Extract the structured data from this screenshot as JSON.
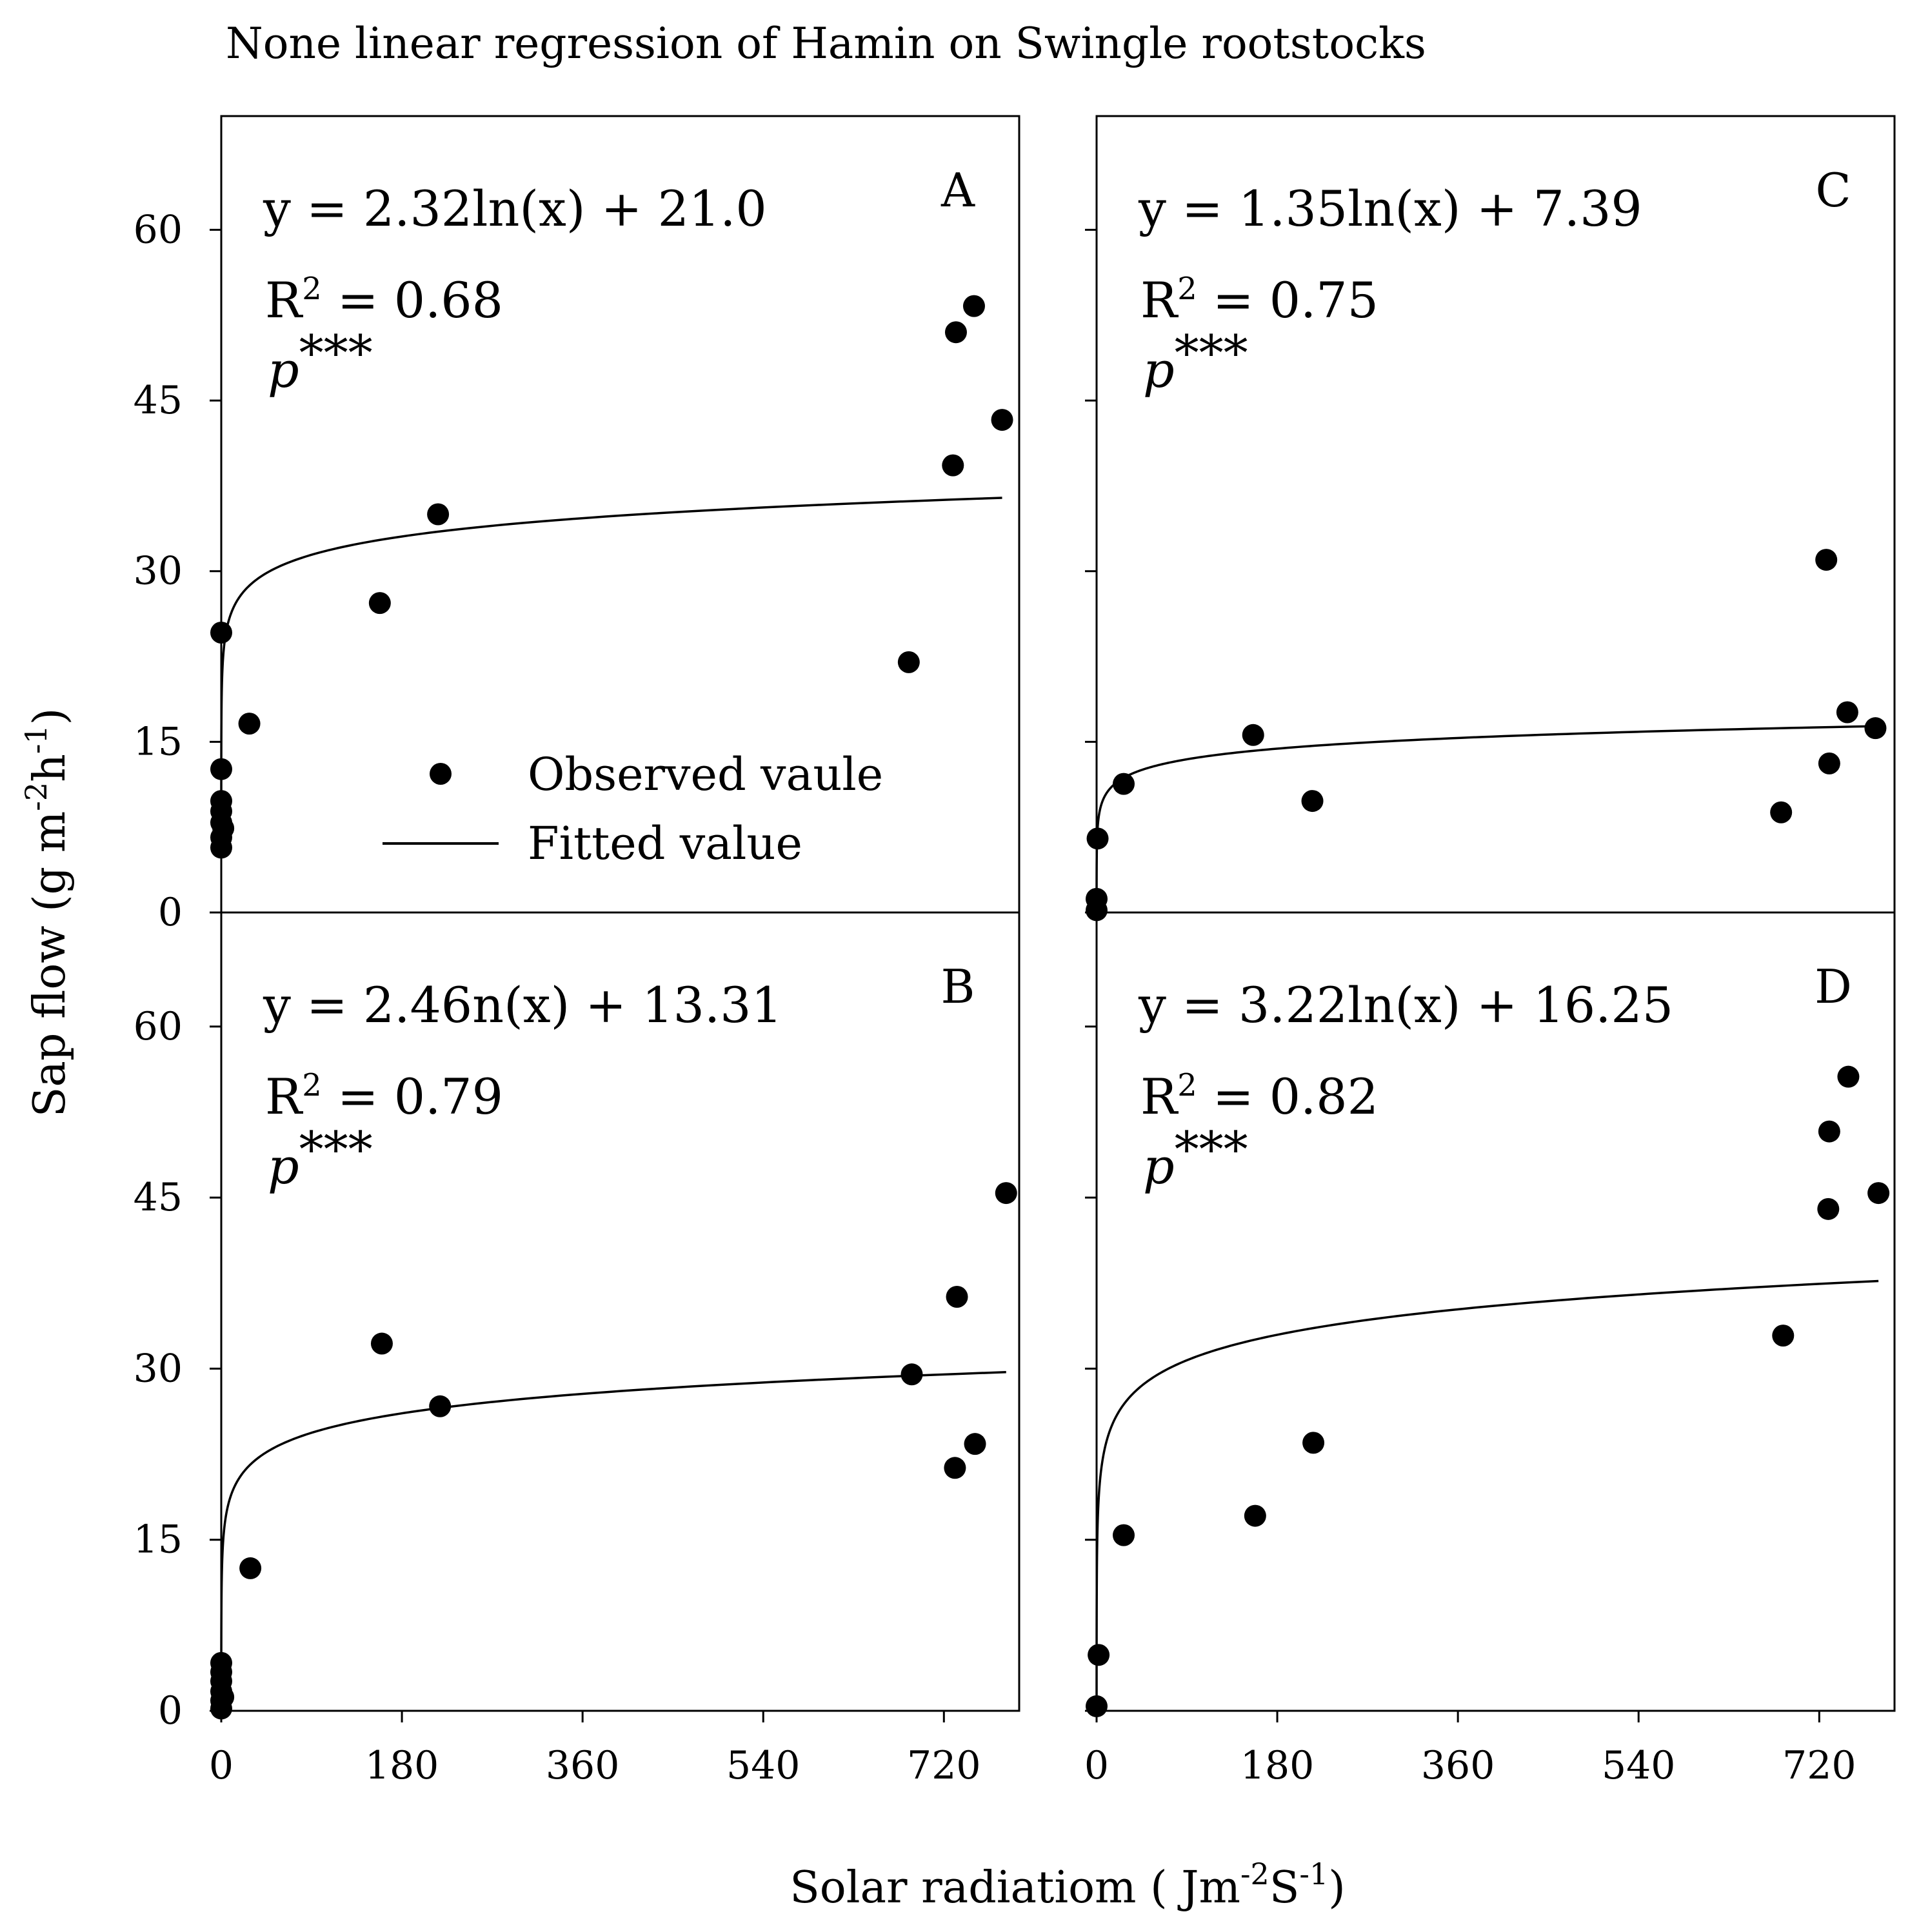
{
  "chart_data": {
    "type": "scatter",
    "title": "None linear regression of Hamin on Swingle rootstocks",
    "xlabel": {
      "base": "Solar radiatiom ( Jm",
      "sup1": "-2",
      "mid": "S",
      "sup2": "-1",
      "end": ")"
    },
    "ylabel": {
      "base": "Sap flow (g m",
      "sup1": "-2",
      "mid": "h",
      "sup2": "-1",
      "end": ")"
    },
    "x_ticks": [
      0,
      180,
      360,
      540,
      720
    ],
    "y_ticks": [
      0,
      15,
      30,
      45,
      60
    ],
    "xlim": [
      0,
      795
    ],
    "ylim": [
      0,
      70
    ],
    "legend": {
      "position": "lower-center of panel A",
      "observed_label": "Observed vaule",
      "fitted_label": "Fitted value"
    },
    "panels": [
      {
        "id": "A",
        "letter": "A",
        "equation": "y = 2.32ln(x) + 21.0",
        "r2_label": "R",
        "r2_sup": "2",
        "r2_value": " = 0.68",
        "p_label": "p",
        "p_stars": "***",
        "fit": {
          "a": 2.32,
          "b": 21.0
        },
        "points": [
          [
            0,
            24.6
          ],
          [
            0,
            12.6
          ],
          [
            0,
            9.8
          ],
          [
            0,
            8.9
          ],
          [
            0,
            7.9
          ],
          [
            0,
            6.6
          ],
          [
            0,
            5.7
          ],
          [
            2,
            7.4
          ],
          [
            28,
            16.6
          ],
          [
            158,
            27.2
          ],
          [
            216,
            35.0
          ],
          [
            685,
            22.0
          ],
          [
            729,
            39.3
          ],
          [
            732,
            51.0
          ],
          [
            750,
            53.3
          ],
          [
            778,
            43.3
          ]
        ],
        "fit_x_range": [
          0.001,
          778
        ]
      },
      {
        "id": "B",
        "letter": "B",
        "equation": "y = 2.46n(x) + 13.31",
        "r2_label": "R",
        "r2_sup": "2",
        "r2_value": " = 0.79",
        "p_label": "p",
        "p_stars": "***",
        "fit": {
          "a": 2.46,
          "b": 13.31
        },
        "points": [
          [
            0,
            4.2
          ],
          [
            0,
            3.4
          ],
          [
            0,
            2.6
          ],
          [
            0,
            1.7
          ],
          [
            0,
            0.9
          ],
          [
            0,
            0.2
          ],
          [
            2,
            1.2
          ],
          [
            29,
            12.5
          ],
          [
            160,
            32.2
          ],
          [
            218,
            26.7
          ],
          [
            688,
            29.5
          ],
          [
            731,
            21.3
          ],
          [
            733,
            36.3
          ],
          [
            751,
            23.4
          ],
          [
            782,
            45.4
          ]
        ],
        "fit_x_range": [
          0.002,
          782
        ]
      },
      {
        "id": "C",
        "letter": "C",
        "equation": "y = 1.35ln(x) + 7.39",
        "r2_label": "R",
        "r2_sup": "2",
        "r2_value": " = 0.75",
        "p_label": "p",
        "p_stars": "***",
        "fit": {
          "a": 1.35,
          "b": 7.39
        },
        "points": [
          [
            0,
            0.2
          ],
          [
            0,
            1.2
          ],
          [
            1,
            6.5
          ],
          [
            27,
            11.3
          ],
          [
            156,
            15.6
          ],
          [
            215,
            9.8
          ],
          [
            682,
            8.8
          ],
          [
            727,
            31.0
          ],
          [
            730,
            13.1
          ],
          [
            748,
            17.6
          ],
          [
            776,
            16.2
          ]
        ],
        "fit_x_range": [
          0.01,
          776
        ]
      },
      {
        "id": "D",
        "letter": "D",
        "equation": "y = 3.22ln(x) + 16.25",
        "r2_label": "R",
        "r2_sup": "2",
        "r2_value": " = 0.82",
        "p_label": "p",
        "p_stars": "***",
        "fit": {
          "a": 3.22,
          "b": 16.25
        },
        "points": [
          [
            0,
            0.4
          ],
          [
            2,
            4.9
          ],
          [
            27,
            15.4
          ],
          [
            158,
            17.1
          ],
          [
            216,
            23.5
          ],
          [
            684,
            32.9
          ],
          [
            729,
            44.0
          ],
          [
            730,
            50.8
          ],
          [
            749,
            55.6
          ],
          [
            779,
            45.4
          ]
        ],
        "fit_x_range": [
          0.007,
          779
        ]
      }
    ]
  }
}
